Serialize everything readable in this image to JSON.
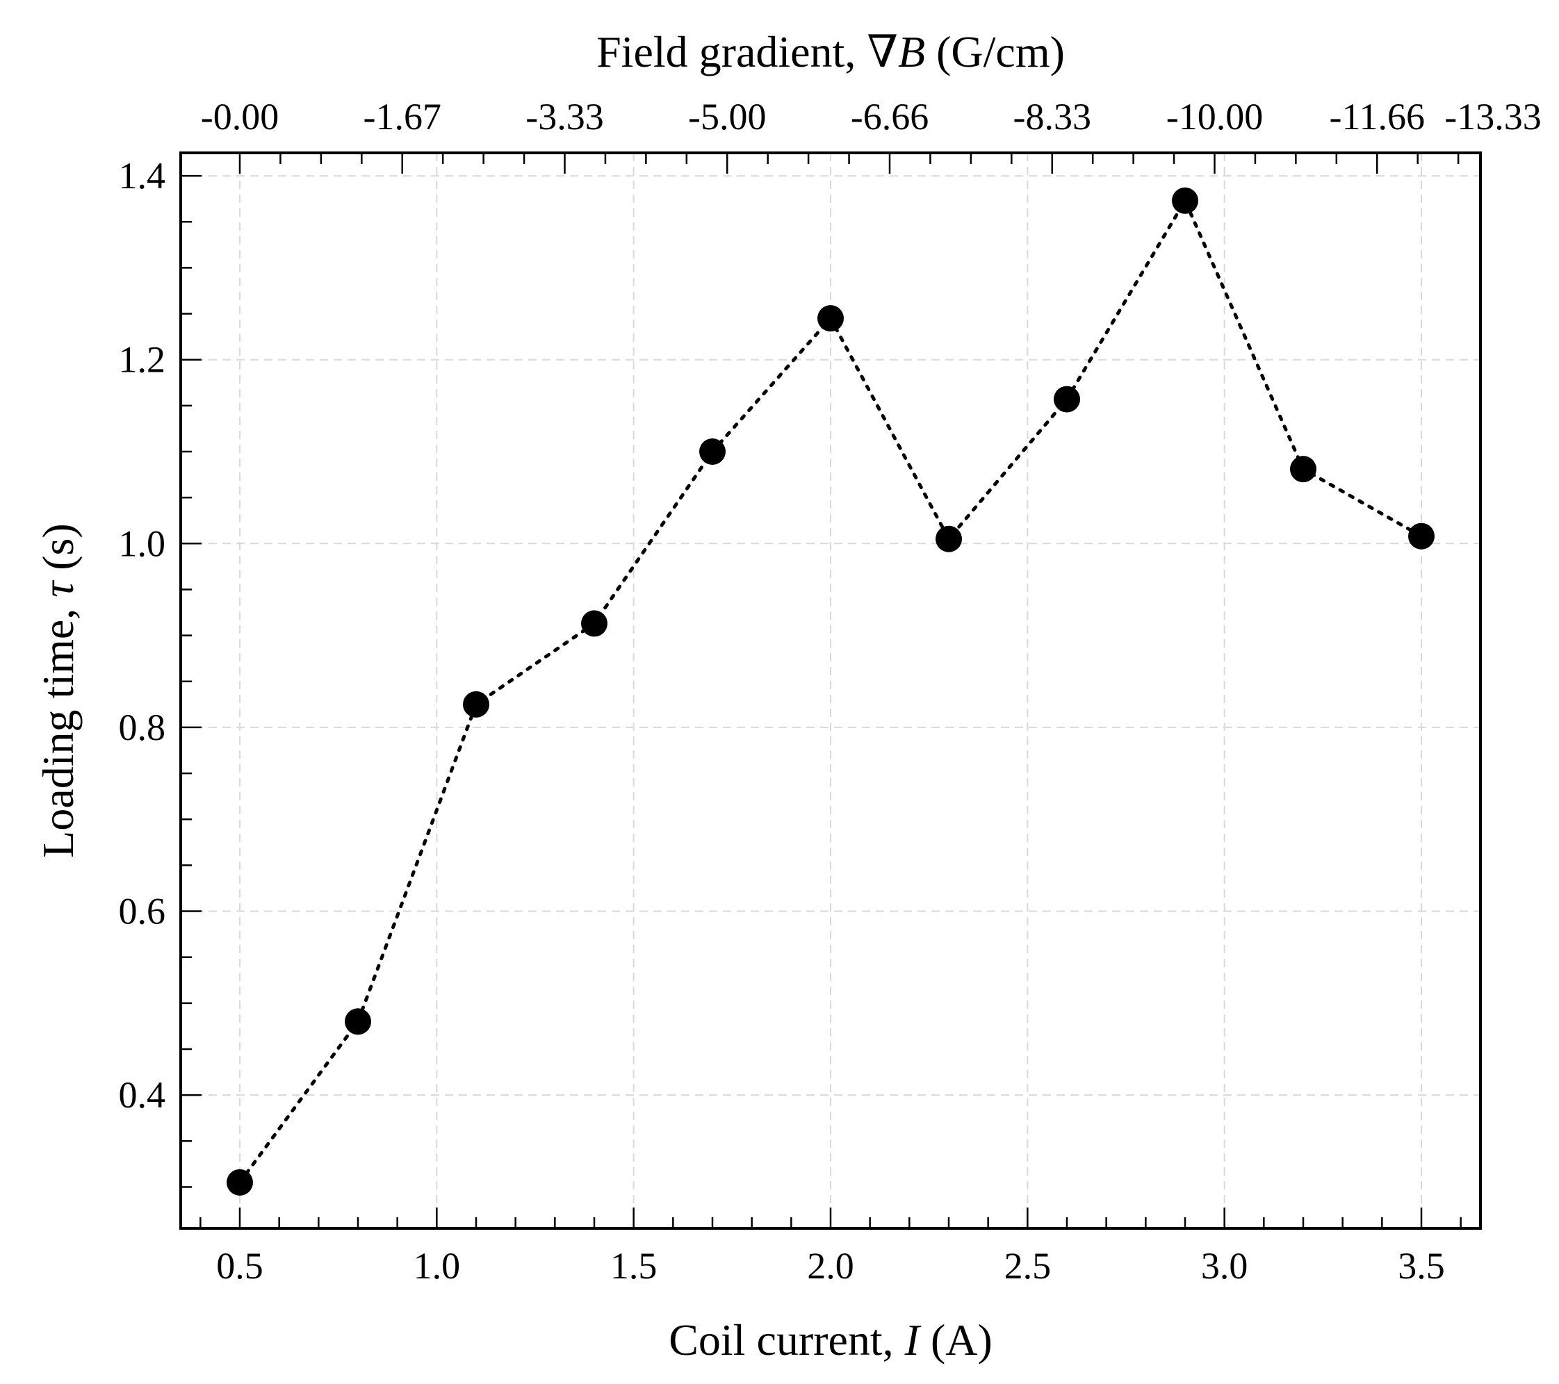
{
  "chart_data": {
    "type": "line",
    "title": "",
    "xlabel": "Coil current, I (A)",
    "xlabel_parts": {
      "pre": "Coil current, ",
      "var": "I",
      "post": " (A)"
    },
    "ylabel": "Loading time, τ (s)",
    "ylabel_parts": {
      "pre": "Loading time, ",
      "var": "τ",
      "post": " (s)"
    },
    "top_xlabel": "Field gradient, ∇B (G/cm)",
    "top_xlabel_parts": {
      "pre": "Field gradient, ∇",
      "var": "B",
      "post": " (G/cm)"
    },
    "xlim": [
      0.35,
      3.65
    ],
    "ylim": [
      0.255,
      1.425
    ],
    "grid": true,
    "x_ticks": [
      0.5,
      1.0,
      1.5,
      2.0,
      2.5,
      3.0,
      3.5
    ],
    "x_tick_labels": [
      "0.5",
      "1.0",
      "1.5",
      "2.0",
      "2.5",
      "3.0",
      "3.5"
    ],
    "x_minor_step": 0.1,
    "y_ticks": [
      0.4,
      0.6,
      0.8,
      1.0,
      1.2,
      1.4
    ],
    "y_tick_labels": [
      "0.4",
      "0.6",
      "0.8",
      "1.0",
      "1.2",
      "1.4"
    ],
    "y_minor_step": 0.05,
    "top_ticks_at_x": [
      0.5,
      0.9125,
      1.325,
      1.7375,
      2.15,
      2.5625,
      2.975,
      3.3875,
      3.8
    ],
    "top_tick_labels": [
      "-0.00",
      "-1.67",
      "-3.33",
      "-5.00",
      "-6.66",
      "-8.33",
      "-10.00",
      "-11.66",
      "-13.33"
    ],
    "series": [
      {
        "x": [
          0.5,
          0.8,
          1.1,
          1.4,
          1.7,
          2.0,
          2.3,
          2.6,
          2.9,
          3.2,
          3.5
        ],
        "y": [
          0.305,
          0.48,
          0.825,
          0.913,
          1.1,
          1.245,
          1.005,
          1.157,
          1.373,
          1.081,
          1.008
        ]
      }
    ]
  }
}
